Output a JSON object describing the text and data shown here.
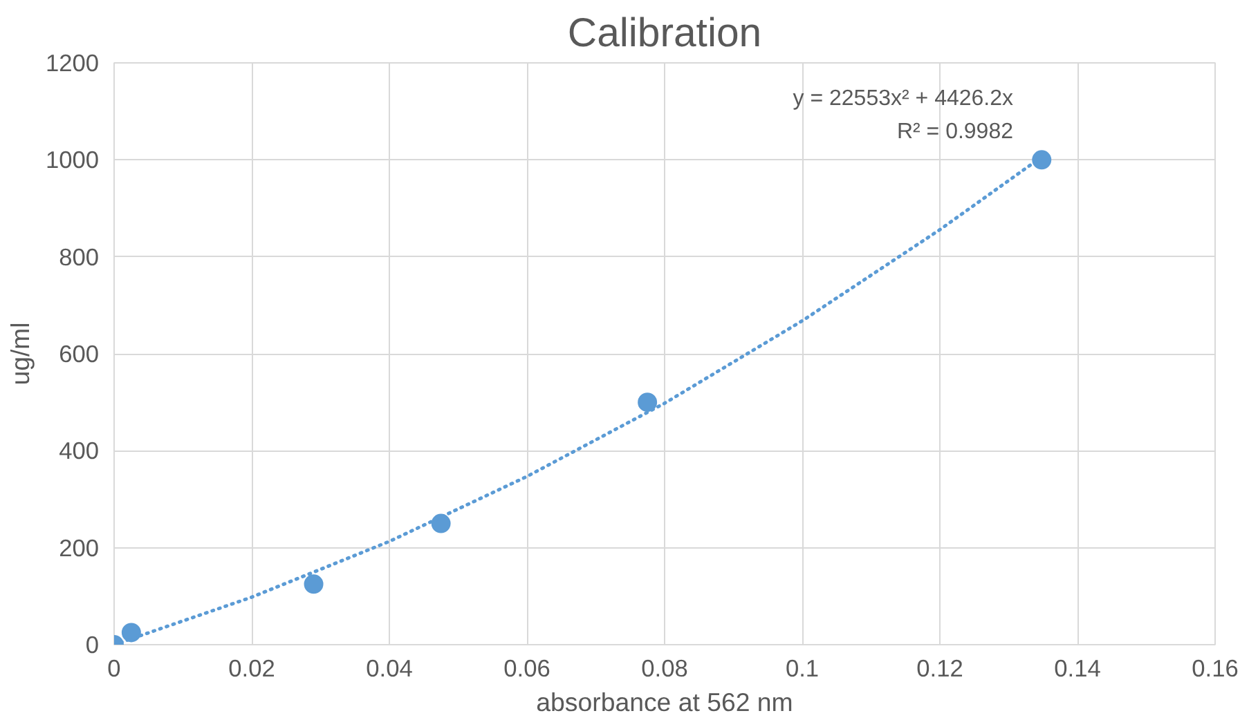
{
  "chart_data": {
    "type": "scatter",
    "title": "Calibration",
    "xlabel": "absorbance at 562 nm",
    "ylabel": "ug/ml",
    "series": [
      {
        "color": "#5b9bd5",
        "x": [
          0,
          0.0025,
          0.029,
          0.0475,
          0.0775,
          0.1348
        ],
        "values": [
          0,
          25,
          125,
          250,
          500,
          1000
        ],
        "marker": "circle"
      },
      {
        "type": "line",
        "color": "#5b9bd5",
        "line_style": "dotted",
        "marker": "none",
        "x": [
          0,
          0.02,
          0.04,
          0.06,
          0.08,
          0.1,
          0.12,
          0.135
        ],
        "values": [
          0,
          98,
          213,
          347,
          498,
          668,
          856,
          1008
        ]
      }
    ],
    "annotations": [
      "y = 22553x² + 4426.2x",
      "R² = 0.9982"
    ],
    "xlim": [
      0,
      0.16
    ],
    "xticks": [
      0,
      0.02,
      0.04,
      0.06,
      0.08,
      0.1,
      0.12,
      0.14,
      0.16
    ],
    "ylim": [
      0,
      1200
    ],
    "yticks": [
      0,
      200,
      400,
      600,
      800,
      1000,
      1200
    ],
    "grid": true
  }
}
